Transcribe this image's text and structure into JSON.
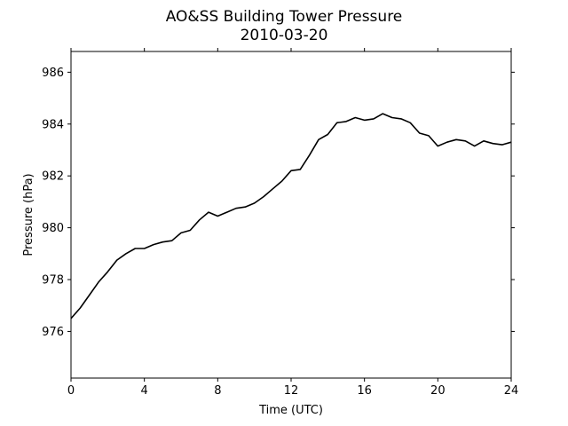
{
  "chart_data": {
    "type": "line",
    "title": "AO&SS Building Tower Pressure",
    "subtitle": "2010-03-20",
    "xlabel": "Time (UTC)",
    "ylabel": "Pressure (hPa)",
    "xlim": [
      0,
      24
    ],
    "ylim": [
      974.2,
      986.8
    ],
    "xticks": [
      0,
      4,
      8,
      12,
      16,
      20,
      24
    ],
    "yticks": [
      976,
      978,
      980,
      982,
      984,
      986
    ],
    "grid": false,
    "line_color": "#000000",
    "series": [
      {
        "x": [
          0,
          0.5,
          1,
          1.5,
          2,
          2.5,
          3,
          3.5,
          4,
          4.5,
          5,
          5.5,
          6,
          6.5,
          7,
          7.5,
          8,
          8.5,
          9,
          9.5,
          10,
          10.5,
          11,
          11.5,
          12,
          12.5,
          13,
          13.5,
          14,
          14.5,
          15,
          15.5,
          16,
          16.5,
          17,
          17.5,
          18,
          18.5,
          19,
          19.5,
          20,
          20.5,
          21,
          21.5,
          22,
          22.5,
          23,
          23.5,
          24
        ],
        "y": [
          976.5,
          976.9,
          977.4,
          977.9,
          978.3,
          978.75,
          979.0,
          979.2,
          979.2,
          979.35,
          979.45,
          979.5,
          979.8,
          979.9,
          980.3,
          980.6,
          980.45,
          980.6,
          980.75,
          980.8,
          980.95,
          981.2,
          981.5,
          981.8,
          982.2,
          982.25,
          982.8,
          983.4,
          983.6,
          984.05,
          984.1,
          984.25,
          984.15,
          984.2,
          984.4,
          984.25,
          984.2,
          984.05,
          983.65,
          983.55,
          983.15,
          983.3,
          983.4,
          983.35,
          983.15,
          983.35,
          983.25,
          983.2,
          983.3
        ]
      }
    ]
  }
}
